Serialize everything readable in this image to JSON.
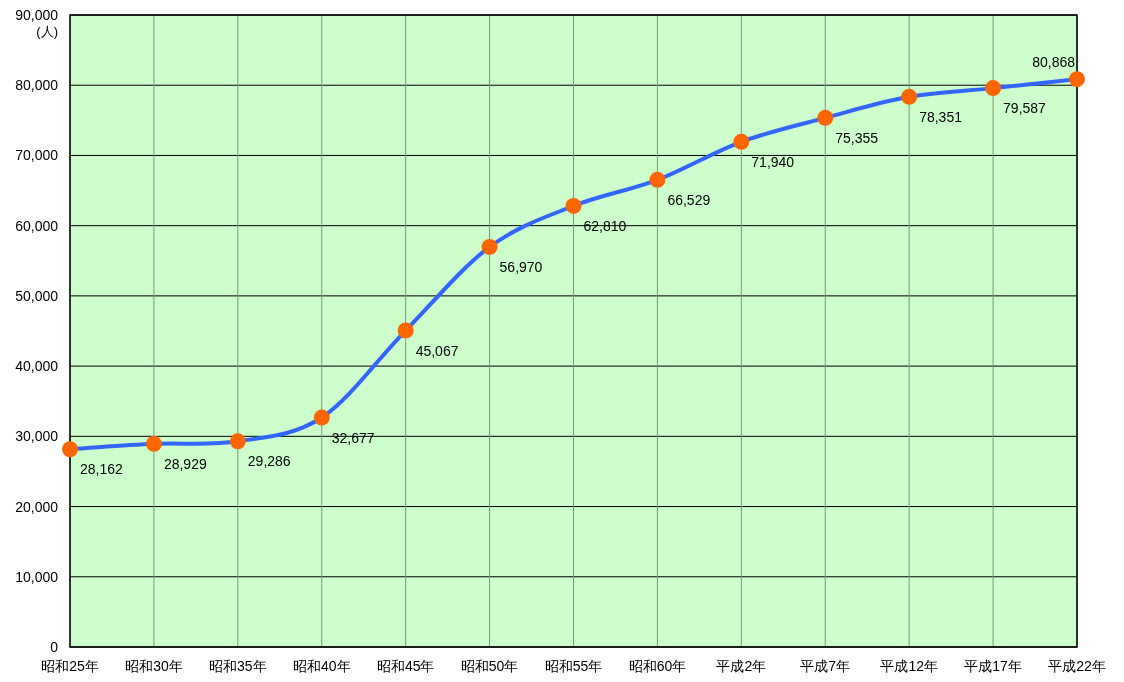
{
  "chart_data": {
    "type": "line",
    "ylabel": "(人)",
    "categories": [
      "昭和25年",
      "昭和30年",
      "昭和35年",
      "昭和40年",
      "昭和45年",
      "昭和50年",
      "昭和55年",
      "昭和60年",
      "平成2年",
      "平成7年",
      "平成12年",
      "平成17年",
      "平成22年"
    ],
    "series": [
      {
        "color": "#3366ff",
        "values": [
          28162,
          28929,
          29286,
          32677,
          45067,
          56970,
          62810,
          66529,
          71940,
          75355,
          78351,
          79587,
          80868
        ],
        "value_labels": [
          "28,162",
          "28,929",
          "29,286",
          "32,677",
          "45,067",
          "56,970",
          "62,810",
          "66,529",
          "71,940",
          "75,355",
          "78,351",
          "79,587",
          "80,868"
        ],
        "colors": [
          "#ff6600",
          "#ff6600",
          "#ff6600",
          "#ff6600",
          "#ff6600",
          "#ff6600",
          "#ff6600",
          "#ff6600",
          "#ff6600",
          "#ff6600",
          "#ff6600",
          "#ff6600",
          "#ff6600"
        ]
      }
    ],
    "ylim": [
      0,
      90000
    ],
    "yticks": [
      {
        "value": 0,
        "label": "0"
      },
      {
        "value": 10000,
        "label": "10,000"
      },
      {
        "value": 20000,
        "label": "20,000"
      },
      {
        "value": 30000,
        "label": "30,000"
      },
      {
        "value": 40000,
        "label": "40,000"
      },
      {
        "value": 50000,
        "label": "50,000"
      },
      {
        "value": 60000,
        "label": "60,000"
      },
      {
        "value": 70000,
        "label": "70,000"
      },
      {
        "value": 80000,
        "label": "80,000"
      },
      {
        "value": 90000,
        "label": "90,000"
      }
    ],
    "grid": true,
    "marker": "circle"
  }
}
